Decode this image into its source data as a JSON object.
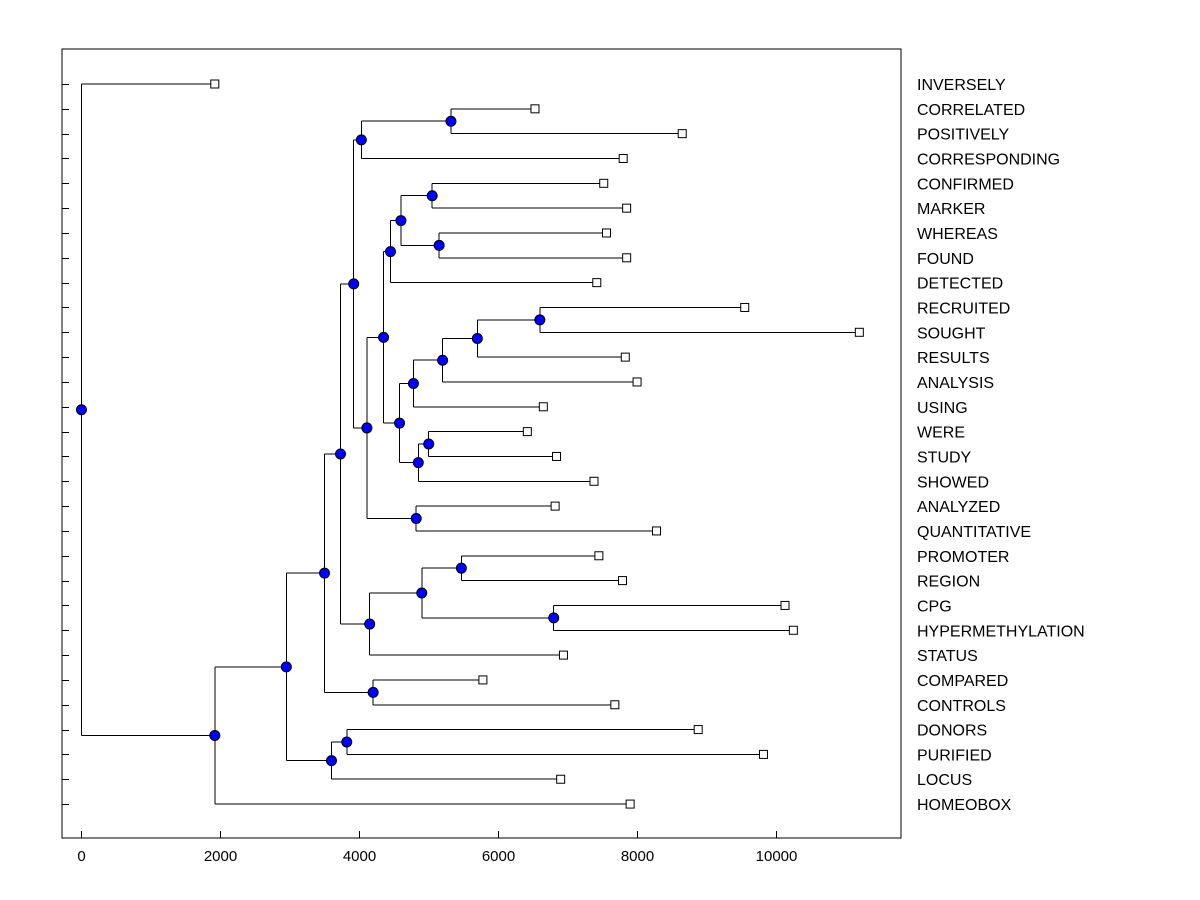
{
  "chart_data": {
    "type": "dendrogram",
    "title": "",
    "xlabel": "",
    "ylabel": "",
    "xlim": [
      -280,
      11800
    ],
    "x_ticks": [
      0,
      2000,
      4000,
      6000,
      8000,
      10000
    ],
    "x_tick_labels": [
      "0",
      "2000",
      "4000",
      "6000",
      "8000",
      "10000"
    ],
    "grid": false,
    "colors": {
      "node_fill": "#0000ff",
      "leaf_fill": "#ffffff",
      "line": "#000000"
    },
    "leaves": [
      {
        "label": "INVERSELY",
        "value": 1920
      },
      {
        "label": "CORRELATED",
        "value": 6530
      },
      {
        "label": "POSITIVELY",
        "value": 8650
      },
      {
        "label": "CORRESPONDING",
        "value": 7800
      },
      {
        "label": "CONFIRMED",
        "value": 7520
      },
      {
        "label": "MARKER",
        "value": 7850
      },
      {
        "label": "WHEREAS",
        "value": 7560
      },
      {
        "label": "FOUND",
        "value": 7850
      },
      {
        "label": "DETECTED",
        "value": 7420
      },
      {
        "label": "RECRUITED",
        "value": 9550
      },
      {
        "label": "SOUGHT",
        "value": 11200
      },
      {
        "label": "RESULTS",
        "value": 7830
      },
      {
        "label": "ANALYSIS",
        "value": 8000
      },
      {
        "label": "USING",
        "value": 6650
      },
      {
        "label": "WERE",
        "value": 6420
      },
      {
        "label": "STUDY",
        "value": 6840
      },
      {
        "label": "SHOWED",
        "value": 7380
      },
      {
        "label": "ANALYZED",
        "value": 6820
      },
      {
        "label": "QUANTITATIVE",
        "value": 8280
      },
      {
        "label": "PROMOTER",
        "value": 7450
      },
      {
        "label": "REGION",
        "value": 7790
      },
      {
        "label": "CPG",
        "value": 10130
      },
      {
        "label": "HYPERMETHYLATION",
        "value": 10250
      },
      {
        "label": "STATUS",
        "value": 6940
      },
      {
        "label": "COMPARED",
        "value": 5780
      },
      {
        "label": "CONTROLS",
        "value": 7680
      },
      {
        "label": "DONORS",
        "value": 8880
      },
      {
        "label": "PURIFIED",
        "value": 9820
      },
      {
        "label": "LOCUS",
        "value": 6900
      },
      {
        "label": "HOMEOBOX",
        "value": 7900
      }
    ],
    "tree": {
      "x": 0,
      "c": [
        {
          "leaf": 0
        },
        {
          "x": 1920,
          "c": [
            {
              "x": 2950,
              "c": [
                {
                  "x": 3500,
                  "c": [
                    {
                      "x": 3730,
                      "c": [
                        {
                          "x": 3920,
                          "c": [
                            {
                              "x": 4030,
                              "c": [
                                {
                                  "x": 5320,
                                  "c": [
                                    {
                                      "leaf": 1
                                    },
                                    {
                                      "leaf": 2
                                    }
                                  ]
                                },
                                {
                                  "leaf": 3
                                }
                              ]
                            },
                            {
                              "x": 4110,
                              "c": [
                                {
                                  "x": 4350,
                                  "c": [
                                    {
                                      "x": 4450,
                                      "c": [
                                        {
                                          "x": 4600,
                                          "c": [
                                            {
                                              "x": 5050,
                                              "c": [
                                                {
                                                  "leaf": 4
                                                },
                                                {
                                                  "leaf": 5
                                                }
                                              ]
                                            },
                                            {
                                              "x": 5150,
                                              "c": [
                                                {
                                                  "leaf": 6
                                                },
                                                {
                                                  "leaf": 7
                                                }
                                              ]
                                            }
                                          ]
                                        },
                                        {
                                          "leaf": 8
                                        }
                                      ]
                                    },
                                    {
                                      "x": 4580,
                                      "c": [
                                        {
                                          "x": 4780,
                                          "c": [
                                            {
                                              "x": 5200,
                                              "c": [
                                                {
                                                  "x": 5700,
                                                  "c": [
                                                    {
                                                      "x": 6600,
                                                      "c": [
                                                        {
                                                          "leaf": 9
                                                        },
                                                        {
                                                          "leaf": 10
                                                        }
                                                      ]
                                                    },
                                                    {
                                                      "leaf": 11
                                                    }
                                                  ]
                                                },
                                                {
                                                  "leaf": 12
                                                }
                                              ]
                                            },
                                            {
                                              "leaf": 13
                                            }
                                          ]
                                        },
                                        {
                                          "x": 4850,
                                          "c": [
                                            {
                                              "x": 5000,
                                              "c": [
                                                {
                                                  "leaf": 14
                                                },
                                                {
                                                  "leaf": 15
                                                }
                                              ]
                                            },
                                            {
                                              "leaf": 16
                                            }
                                          ]
                                        }
                                      ]
                                    }
                                  ]
                                },
                                {
                                  "x": 4820,
                                  "c": [
                                    {
                                      "leaf": 17
                                    },
                                    {
                                      "leaf": 18
                                    }
                                  ]
                                }
                              ]
                            }
                          ]
                        },
                        {
                          "x": 4150,
                          "c": [
                            {
                              "x": 4900,
                              "c": [
                                {
                                  "x": 5470,
                                  "c": [
                                    {
                                      "leaf": 19
                                    },
                                    {
                                      "leaf": 20
                                    }
                                  ]
                                },
                                {
                                  "x": 6800,
                                  "c": [
                                    {
                                      "leaf": 21
                                    },
                                    {
                                      "leaf": 22
                                    }
                                  ]
                                }
                              ]
                            },
                            {
                              "leaf": 23
                            }
                          ]
                        }
                      ]
                    },
                    {
                      "x": 4200,
                      "c": [
                        {
                          "leaf": 24
                        },
                        {
                          "leaf": 25
                        }
                      ]
                    }
                  ]
                },
                {
                  "x": 3600,
                  "c": [
                    {
                      "x": 3820,
                      "c": [
                        {
                          "leaf": 26
                        },
                        {
                          "leaf": 27
                        }
                      ]
                    },
                    {
                      "leaf": 28
                    }
                  ]
                }
              ]
            },
            {
              "leaf": 29
            }
          ]
        }
      ]
    }
  }
}
